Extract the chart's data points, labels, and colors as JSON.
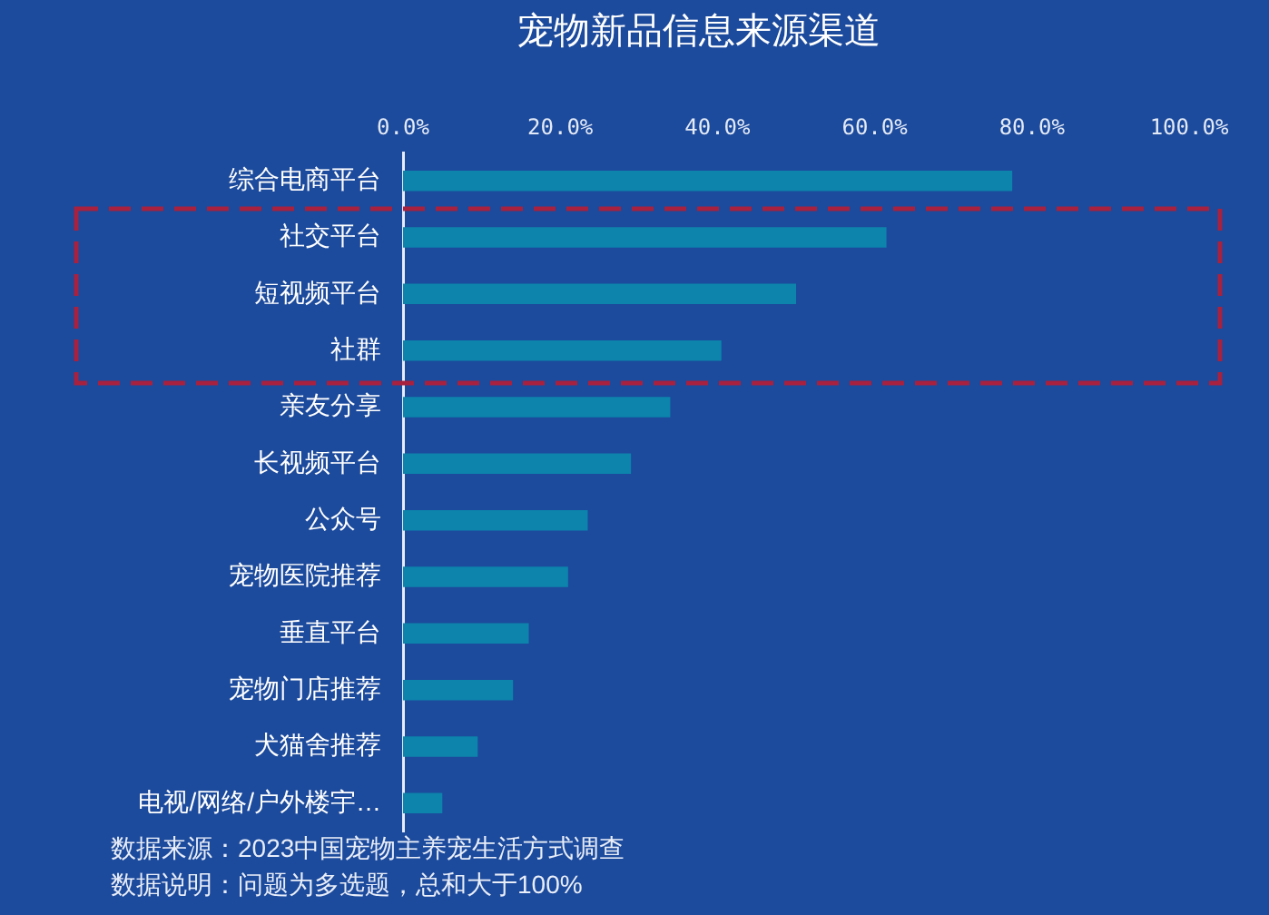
{
  "chart_data": {
    "type": "bar",
    "orientation": "horizontal",
    "title": "宠物新品信息来源渠道",
    "categories": [
      "综合电商平台",
      "社交平台",
      "短视频平台",
      "社群",
      "亲友分享",
      "长视频平台",
      "公众号",
      "宠物医院推荐",
      "垂直平台",
      "宠物门店推荐",
      "犬猫舍推荐",
      "电视/网络/户外楼宇…"
    ],
    "values": [
      77.5,
      61.5,
      50,
      40.5,
      34,
      29,
      23.5,
      21,
      16,
      14,
      9.5,
      5
    ],
    "color": "#0c84ac",
    "xlim": [
      0,
      100
    ],
    "xticks": [
      {
        "value": 0,
        "label": "0.0%"
      },
      {
        "value": 20,
        "label": "20.0%"
      },
      {
        "value": 40,
        "label": "40.0%"
      },
      {
        "value": 60,
        "label": "60.0%"
      },
      {
        "value": 80,
        "label": "80.0%"
      },
      {
        "value": 100,
        "label": "100.0%"
      }
    ],
    "annotations": [
      "数据来源：2023中国宠物主养宠生活方式调查",
      "数据说明：问题为多选题，总和大于100%"
    ]
  }
}
